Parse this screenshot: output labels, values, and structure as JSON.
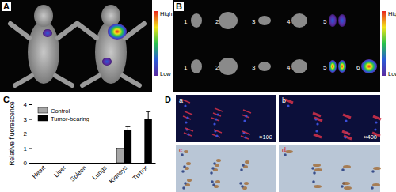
{
  "chart_data": {
    "type": "bar",
    "categories": [
      "Heart",
      "Liver",
      "Spleen",
      "Lungs",
      "Kidneys",
      "Tumor"
    ],
    "series": [
      {
        "name": "Control",
        "color": "#a6a6a6",
        "values": [
          0,
          0,
          0,
          0,
          1.0,
          null
        ],
        "errors": [
          null,
          null,
          null,
          null,
          null,
          null
        ]
      },
      {
        "name": "Tumor-bearing",
        "color": "#000000",
        "values": [
          0,
          0,
          0,
          0,
          2.25,
          3.0
        ],
        "errors": [
          null,
          null,
          null,
          null,
          0.22,
          0.5
        ]
      }
    ],
    "y_label": "Relative fluorescence",
    "ylim": [
      0,
      4
    ],
    "yticks": [
      0,
      1,
      2,
      3,
      4
    ],
    "legend": "upper left",
    "grid": false
  },
  "panel_labels": [
    "A",
    "B",
    "C",
    "D"
  ],
  "panel_a": {
    "colorbar": {
      "high": "High",
      "low": "Low"
    }
  },
  "panel_b": {
    "organ_labels_top": [
      "1",
      "2",
      "3",
      "4",
      "5"
    ],
    "organ_labels_bottom": [
      "1",
      "2",
      "3",
      "4",
      "5",
      "6"
    ],
    "colorbar": {
      "high": "High",
      "low": "Low"
    }
  },
  "panel_d": {
    "subpanels": [
      {
        "label": "a",
        "magnification": "×100"
      },
      {
        "label": "b",
        "magnification": "×400"
      },
      {
        "label": "c"
      },
      {
        "label": "d"
      }
    ]
  }
}
